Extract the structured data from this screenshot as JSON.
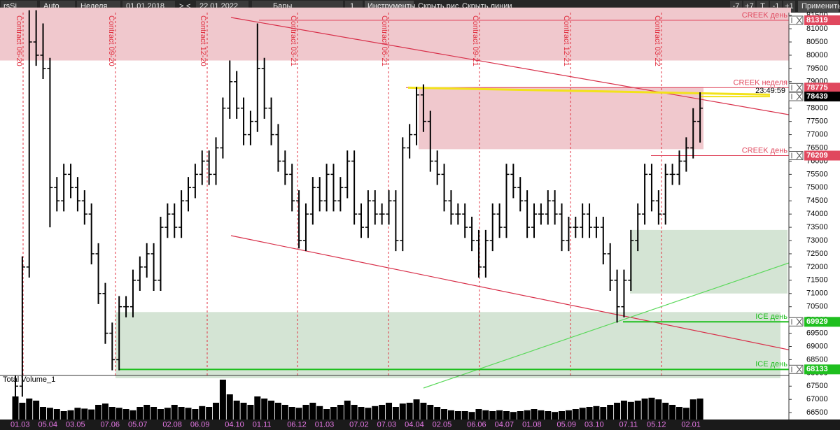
{
  "toolbar": {
    "symbol": "rsSi",
    "scale": "Auto",
    "period": "Неделя",
    "date_from": "01.01.2018",
    "next": ">",
    "prev": "<",
    "date_to": "22.01.2022",
    "style": "Бары",
    "count": "1",
    "tools": "Инструменты",
    "hide_drawings": "Скрыть рис.",
    "hide_lines": "Скрыть линии",
    "buttons": [
      "-7",
      "+7",
      "Т",
      "-1",
      "+1"
    ],
    "apply": "Применить"
  },
  "chart_data": {
    "type": "ohlc",
    "color": "#000000",
    "categories": [
      "01.03",
      null,
      null,
      null,
      "05.04",
      null,
      null,
      null,
      "03.05",
      null,
      null,
      null,
      null,
      "07.06",
      null,
      null,
      null,
      "05.07",
      null,
      null,
      null,
      null,
      "02.08",
      null,
      null,
      null,
      "06.09",
      null,
      null,
      null,
      null,
      "04.10",
      null,
      null,
      null,
      "01.11",
      null,
      null,
      null,
      null,
      "06.12",
      null,
      null,
      null,
      "01.03",
      null,
      null,
      null,
      null,
      "07.02",
      null,
      null,
      null,
      "07.03",
      null,
      null,
      null,
      "04.04",
      null,
      null,
      null,
      "02.05",
      null,
      null,
      null,
      null,
      "06.06",
      null,
      null,
      null,
      "04.07",
      null,
      null,
      null,
      "01.08",
      null,
      null,
      null,
      null,
      "05.09",
      null,
      null,
      null,
      "03.10",
      null,
      null,
      null,
      null,
      "07.11",
      null,
      null,
      null,
      "05.12",
      null,
      null,
      null,
      null,
      "02.01",
      null,
      null
    ],
    "open": [
      67000,
      67500,
      72000,
      80500,
      80000,
      79500,
      75000,
      74500,
      75500,
      75000,
      74500,
      74000,
      72500,
      71000,
      69500,
      68500,
      70500,
      70500,
      71500,
      72000,
      72500,
      71500,
      73500,
      74000,
      73500,
      74500,
      75000,
      75500,
      76000,
      75500,
      76500,
      78000,
      79000,
      78000,
      77000,
      77500,
      79500,
      78000,
      77000,
      76000,
      75500,
      74500,
      73000,
      74000,
      75000,
      74500,
      75500,
      74500,
      75000,
      76000,
      74000,
      73500,
      74500,
      74000,
      74000,
      74500,
      73000,
      76500,
      77000,
      78500,
      77500,
      76000,
      75500,
      74500,
      74000,
      74000,
      73500,
      73000,
      72000,
      73000,
      74000,
      73500,
      75500,
      75000,
      74500,
      73500,
      74000,
      74000,
      74500,
      74000,
      73000,
      73500,
      73500,
      74000,
      73500,
      73500,
      72500,
      71500,
      70500,
      71500,
      73000,
      74000,
      75500,
      74500,
      74000,
      75500,
      75500,
      76000,
      76500,
      77500
    ],
    "high": [
      67900,
      72400,
      81700,
      81700,
      81200,
      79900,
      75400,
      75900,
      75900,
      75400,
      74900,
      74400,
      72900,
      71400,
      69900,
      70900,
      70900,
      71900,
      72400,
      72900,
      72900,
      73900,
      74400,
      74400,
      74900,
      75400,
      75900,
      76400,
      76400,
      76900,
      78400,
      79800,
      79400,
      78400,
      77900,
      81200,
      79900,
      78400,
      77400,
      76400,
      75900,
      74900,
      74400,
      75400,
      75400,
      75900,
      75900,
      75400,
      76400,
      76400,
      74400,
      74900,
      74900,
      74400,
      74900,
      74900,
      76900,
      77400,
      78800,
      78900,
      77900,
      76400,
      75900,
      74900,
      74400,
      74400,
      73900,
      73400,
      73400,
      74400,
      74400,
      75900,
      75900,
      75400,
      74900,
      74400,
      74400,
      74900,
      74900,
      74400,
      73900,
      73900,
      74400,
      74400,
      73900,
      73900,
      72900,
      71900,
      71900,
      73400,
      74400,
      75900,
      75900,
      74900,
      75900,
      75900,
      76400,
      76900,
      78000,
      78600
    ],
    "low": [
      66000,
      67100,
      71600,
      79600,
      79100,
      73500,
      74100,
      74100,
      74600,
      74100,
      73600,
      72100,
      70600,
      69100,
      68100,
      68100,
      70100,
      70100,
      71100,
      71600,
      71100,
      71100,
      73100,
      73100,
      73100,
      74100,
      74600,
      75100,
      75100,
      75100,
      76100,
      77600,
      77600,
      76600,
      76600,
      77100,
      77600,
      76600,
      75600,
      75100,
      74100,
      72700,
      72600,
      73600,
      74100,
      74100,
      74100,
      74100,
      74600,
      73600,
      73100,
      73100,
      73600,
      73600,
      73600,
      72600,
      72600,
      76100,
      76600,
      77100,
      75600,
      75100,
      74100,
      73600,
      73600,
      73100,
      72600,
      71600,
      71600,
      72600,
      73100,
      73100,
      74600,
      74100,
      73100,
      73100,
      73600,
      73600,
      73600,
      72600,
      72600,
      73100,
      73100,
      73100,
      73100,
      72100,
      71100,
      69900,
      70100,
      71100,
      72600,
      73600,
      74100,
      73600,
      73600,
      75100,
      75100,
      75600,
      76100,
      76700
    ],
    "close": [
      67500,
      72000,
      80500,
      80000,
      79500,
      75000,
      74500,
      75500,
      75000,
      74500,
      74000,
      72500,
      71000,
      69500,
      68500,
      70500,
      70500,
      71500,
      72000,
      72500,
      71500,
      73500,
      74000,
      73500,
      74500,
      75000,
      75500,
      76000,
      75500,
      76500,
      78000,
      79000,
      78000,
      77000,
      77500,
      79500,
      78000,
      77000,
      76000,
      75500,
      74500,
      73000,
      74000,
      75000,
      74500,
      75500,
      74500,
      75000,
      76000,
      74000,
      73500,
      74500,
      74000,
      74000,
      74500,
      73000,
      76500,
      77000,
      78500,
      77500,
      76000,
      75500,
      74500,
      74000,
      74000,
      73500,
      73000,
      72000,
      73000,
      74000,
      73500,
      75500,
      75000,
      74500,
      73500,
      74000,
      74000,
      74500,
      74000,
      73000,
      73500,
      73500,
      74000,
      73500,
      73500,
      72500,
      71500,
      70500,
      71500,
      73000,
      74000,
      75500,
      74500,
      74000,
      75500,
      75500,
      76000,
      76500,
      77500,
      78000
    ],
    "ylim": [
      66240,
      81610
    ],
    "yticks": [
      66500,
      67000,
      67500,
      68000,
      68500,
      69000,
      69500,
      70000,
      70500,
      71000,
      71500,
      72000,
      72500,
      73000,
      73500,
      74000,
      74500,
      75000,
      75500,
      76000,
      76500,
      77000,
      77500,
      78000,
      78500,
      79000,
      79500,
      80000,
      80500,
      81000,
      81500
    ],
    "volume": {
      "name": "Total Volume_1",
      "color": "#000000",
      "ylim": [
        0,
        100
      ],
      "values": [
        55,
        40,
        50,
        45,
        30,
        28,
        25,
        20,
        22,
        28,
        26,
        24,
        35,
        38,
        30,
        28,
        25,
        22,
        30,
        35,
        30,
        25,
        28,
        35,
        30,
        28,
        25,
        32,
        30,
        40,
        95,
        60,
        45,
        40,
        35,
        55,
        50,
        45,
        40,
        35,
        30,
        28,
        35,
        40,
        32,
        25,
        30,
        35,
        45,
        35,
        30,
        28,
        32,
        35,
        40,
        30,
        38,
        40,
        48,
        40,
        35,
        30,
        25,
        22,
        20,
        20,
        18,
        25,
        22,
        20,
        22,
        20,
        18,
        20,
        22,
        25,
        22,
        20,
        18,
        20,
        22,
        25,
        28,
        30,
        32,
        30,
        35,
        40,
        45,
        42,
        45,
        50,
        52,
        48,
        40,
        35,
        30,
        28,
        48,
        50
      ]
    },
    "zones": [
      {
        "from": 79800,
        "to": 81800,
        "color": "#f0c8cd"
      },
      {
        "from": 76450,
        "to": 78800,
        "color": "#f0c8cd"
      },
      {
        "from": 71000,
        "to": 73400,
        "color": "#d4e4d4"
      },
      {
        "from": 67800,
        "to": 70300,
        "color": "#d4e4d4"
      }
    ],
    "levels": [
      {
        "label": "CREEK день",
        "value": 81319,
        "color": "#e0485e"
      },
      {
        "label": "CREEK неделя",
        "value": 78775,
        "color": "#e0485e"
      },
      {
        "label": "CREEK день",
        "value": 76209,
        "color": "#e0485e"
      },
      {
        "label": "ICE день",
        "value": 69929,
        "color": "#1fbf1f"
      },
      {
        "label": "ICE день",
        "value": 68133,
        "color": "#1fbf1f"
      }
    ],
    "current_price": 78439,
    "timer": "23:49:59",
    "contracts": [
      "Contract 06-20",
      "Contract 09-20",
      "Contract 12-20",
      "Contract 03-21",
      "Contract 06-21",
      "Contract 09-21",
      "Contract 12-21",
      "Contract 03-22"
    ]
  }
}
